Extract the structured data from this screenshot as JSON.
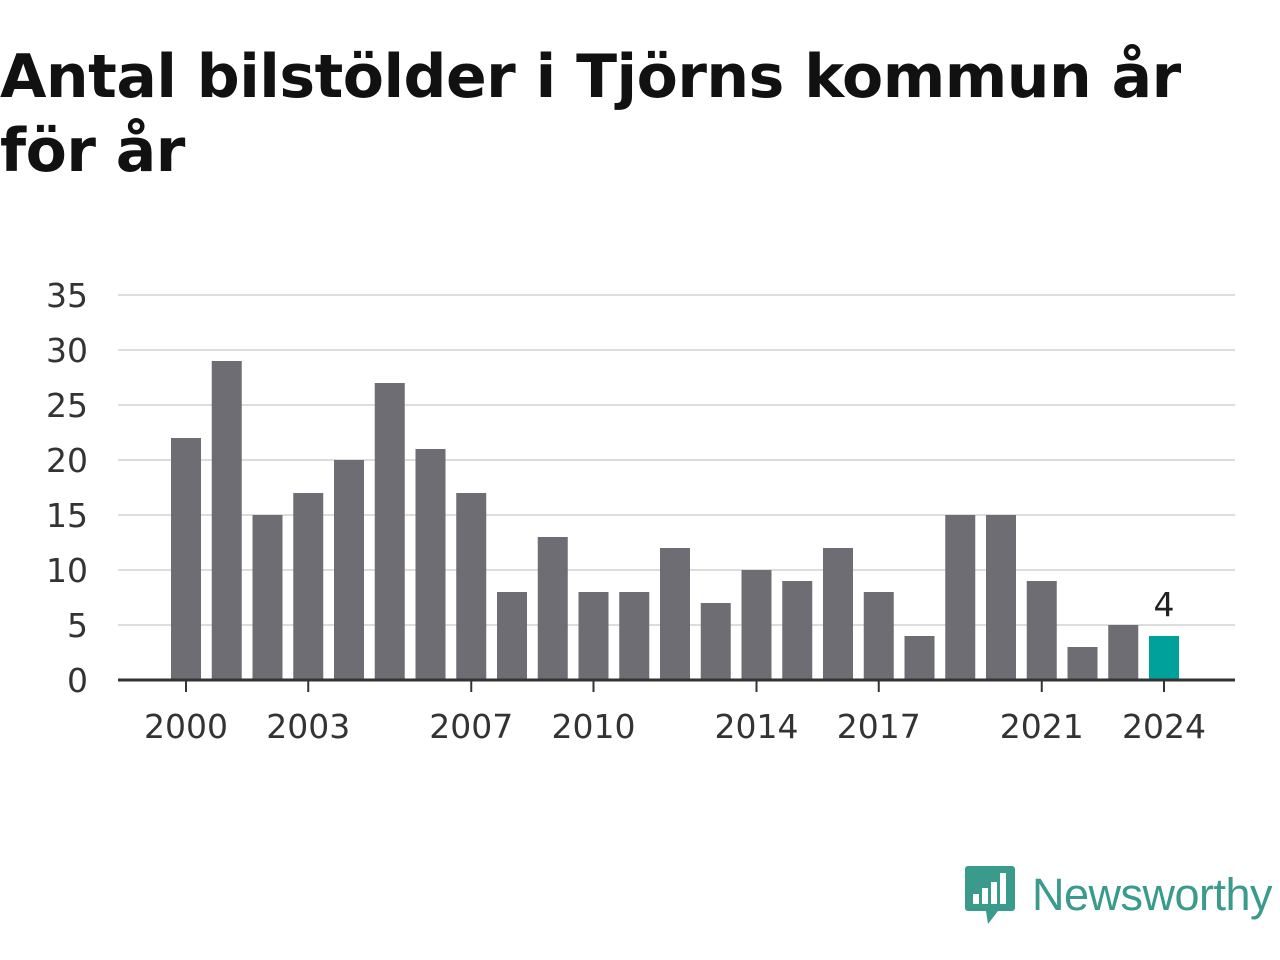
{
  "chart_data": {
    "type": "bar",
    "title": "Antal bilstölder i Tjörns kommun år för år",
    "xlabel": "",
    "ylabel": "",
    "categories": [
      "2000",
      "2001",
      "2002",
      "2003",
      "2004",
      "2005",
      "2006",
      "2007",
      "2008",
      "2009",
      "2010",
      "2011",
      "2012",
      "2013",
      "2014",
      "2015",
      "2016",
      "2017",
      "2018",
      "2019",
      "2020",
      "2021",
      "2022",
      "2023",
      "2024"
    ],
    "values": [
      22,
      29,
      15,
      17,
      20,
      27,
      21,
      17,
      8,
      13,
      8,
      8,
      12,
      7,
      10,
      9,
      12,
      8,
      4,
      15,
      15,
      9,
      3,
      5,
      4
    ],
    "x_tick_labels": [
      "2000",
      "2003",
      "2007",
      "2010",
      "2014",
      "2017",
      "2021",
      "2024"
    ],
    "y_ticks": [
      0,
      5,
      10,
      15,
      20,
      25,
      30,
      35
    ],
    "ylim": [
      0,
      35
    ],
    "grid": true,
    "highlight": {
      "category": "2024",
      "label": "4"
    },
    "colors": {
      "bar": "#6e6d73",
      "highlight": "#00a19a",
      "grid": "#dddddd",
      "axis": "#333333"
    }
  },
  "brand": {
    "name": "Newsworthy",
    "logo_icon": "bar-chart-speech-bubble-icon",
    "color": "#3a9a8c"
  }
}
